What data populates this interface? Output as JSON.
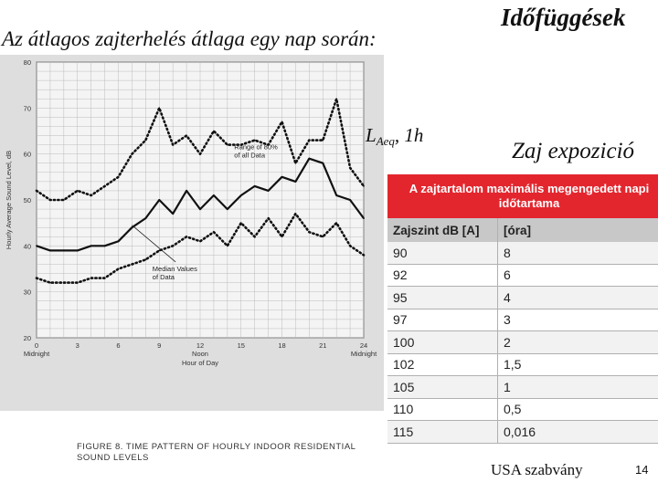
{
  "slide": {
    "title": "Az átlagos zajterhelés átlaga egy nap során:",
    "section_title": "Időfüggések",
    "laeq_main": "L",
    "laeq_sub": "Aeq",
    "laeq_suffix": ", 1h",
    "exposure_title": "Zaj expozició",
    "source": "USA szabvány",
    "page_number": "14"
  },
  "chart_data": {
    "type": "line",
    "title": "FIGURE 8.  TIME PATTERN OF HOURLY INDOOR RESIDENTIAL SOUND LEVELS",
    "xlabel": "Hour of Day",
    "ylabel": "Hourly Average Sound Level, dB",
    "xlim": [
      0,
      24
    ],
    "ylim": [
      20,
      80
    ],
    "x_ticks": [
      0,
      3,
      6,
      9,
      12,
      15,
      18,
      21,
      24
    ],
    "x_tick_labels": [
      "0",
      "3",
      "6",
      "9",
      "12",
      "15",
      "18",
      "21",
      "24"
    ],
    "x_tick_sublabels": [
      "Midnight",
      "",
      "",
      "",
      "Noon",
      "",
      "",
      "",
      "Midnight"
    ],
    "y_ticks": [
      20,
      30,
      40,
      50,
      60,
      70,
      80
    ],
    "grid": true,
    "annotations": [
      {
        "lines": [
          "Range of 80%",
          "of all Data"
        ],
        "x": 14.5,
        "y": 61
      },
      {
        "lines": [
          "Median Values",
          "of Data"
        ],
        "x": 8.5,
        "y": 34.5
      }
    ],
    "series": [
      {
        "name": "Range of 80% of all Data (upper)",
        "style": "dotted",
        "x": [
          0,
          1,
          2,
          3,
          4,
          5,
          6,
          7,
          8,
          9,
          10,
          11,
          12,
          13,
          14,
          15,
          16,
          17,
          18,
          19,
          20,
          21,
          22,
          23,
          24
        ],
        "values": [
          52,
          50,
          50,
          52,
          51,
          53,
          55,
          60,
          63,
          70,
          62,
          64,
          60,
          65,
          62,
          62,
          63,
          62,
          67,
          58,
          63,
          63,
          72,
          57,
          53
        ]
      },
      {
        "name": "Median Values of Data",
        "style": "solid",
        "x": [
          0,
          1,
          2,
          3,
          4,
          5,
          6,
          7,
          8,
          9,
          10,
          11,
          12,
          13,
          14,
          15,
          16,
          17,
          18,
          19,
          20,
          21,
          22,
          23,
          24
        ],
        "values": [
          40,
          39,
          39,
          39,
          40,
          40,
          41,
          44,
          46,
          50,
          47,
          52,
          48,
          51,
          48,
          51,
          53,
          52,
          55,
          54,
          59,
          58,
          51,
          50,
          46
        ]
      },
      {
        "name": "Range of 80% of all Data (lower)",
        "style": "dotted",
        "x": [
          0,
          1,
          2,
          3,
          4,
          5,
          6,
          7,
          8,
          9,
          10,
          11,
          12,
          13,
          14,
          15,
          16,
          17,
          18,
          19,
          20,
          21,
          22,
          23,
          24
        ],
        "values": [
          33,
          32,
          32,
          32,
          33,
          33,
          35,
          36,
          37,
          39,
          40,
          42,
          41,
          43,
          40,
          45,
          42,
          46,
          42,
          47,
          43,
          42,
          45,
          40,
          38
        ]
      }
    ]
  },
  "exposure_table": {
    "header": "A zajtartalom maximális megengedett napi időtartama",
    "columns": [
      "Zajszint dB [A]",
      "[óra]"
    ],
    "rows": [
      [
        "90",
        "8"
      ],
      [
        "92",
        "6"
      ],
      [
        "95",
        "4"
      ],
      [
        "97",
        "3"
      ],
      [
        "100",
        "2"
      ],
      [
        "102",
        "1,5"
      ],
      [
        "105",
        "1"
      ],
      [
        "110",
        "0,5"
      ],
      [
        "115",
        "0,016"
      ]
    ],
    "header_color": "#e3262e"
  }
}
